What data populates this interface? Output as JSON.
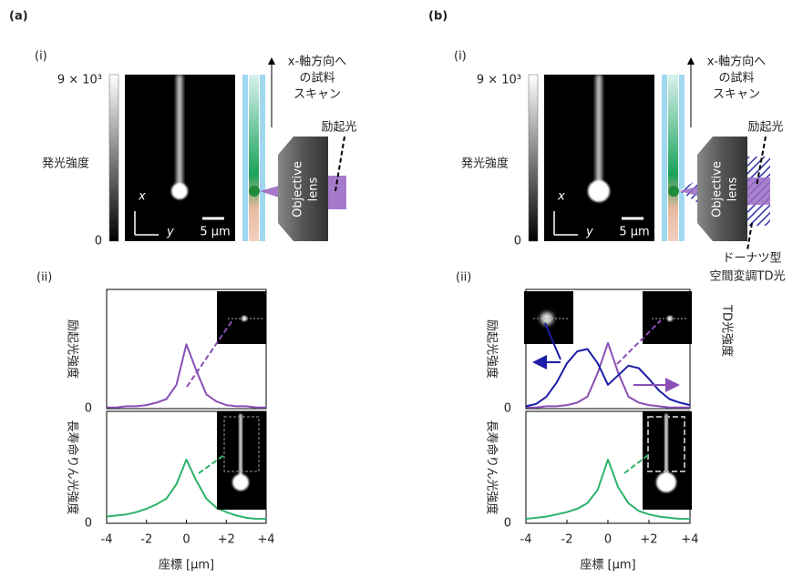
{
  "panels": [
    {
      "label": "(a)",
      "image_label": "(i)",
      "colorbar_ticks": [
        {
          "value": 9000,
          "label": "9 × 10³"
        },
        0
      ],
      "colorbar_title": "発光強度",
      "axis_x": "x",
      "axis_y": "y",
      "scale_bar": "5 μm",
      "scan_label": [
        "x-軸方向へ",
        "の試料",
        "スキャン"
      ],
      "excitation": "励起光",
      "lens": [
        "Objective",
        "lens"
      ],
      "plot_label": "(ii)"
    },
    {
      "label": "(b)",
      "image_label": "(i)",
      "colorbar_ticks": [
        {
          "value": 9000,
          "label": "9 × 10³"
        },
        0
      ],
      "colorbar_title": "発光強度",
      "axis_x": "x",
      "axis_y": "y",
      "scale_bar": "5 μm",
      "scan_label": [
        "x-軸方向へ",
        "の試料",
        "スキャン"
      ],
      "excitation": "励起光",
      "lens": [
        "Objective",
        "lens"
      ],
      "td_light": [
        "ドーナツ型",
        "空間変調TD光"
      ],
      "plot_label": "(ii)"
    }
  ],
  "chart_data": [
    {
      "type": "line",
      "ylabel": "励起光強度",
      "x": [
        -4,
        -3.5,
        -3,
        -2.5,
        -2,
        -1.5,
        -1,
        -0.5,
        0,
        0.5,
        1,
        1.5,
        2,
        2.5,
        3,
        3.5,
        4
      ],
      "xlim": [
        -4,
        4
      ],
      "ylim": [
        0,
        1
      ],
      "yticks": [
        0
      ],
      "series": [
        {
          "color": "#8a4fb5",
          "values": [
            0.01,
            0.01,
            0.02,
            0.02,
            0.03,
            0.05,
            0.08,
            0.2,
            0.54,
            0.32,
            0.12,
            0.06,
            0.03,
            0.02,
            0.02,
            0.01,
            0.01
          ]
        }
      ]
    },
    {
      "type": "line",
      "ylabel": "長寿命りん光強度",
      "xlabel": "座標 [μm]",
      "x": [
        -4,
        -3.5,
        -3,
        -2.5,
        -2,
        -1.5,
        -1,
        -0.5,
        0,
        0.5,
        1,
        1.5,
        2,
        2.5,
        3,
        3.5,
        4
      ],
      "xlim": [
        -4,
        4
      ],
      "xticks": [
        -4,
        -2,
        0,
        {
          "value": 2,
          "label": "+2"
        },
        {
          "value": 4,
          "label": "+4"
        }
      ],
      "ylim": [
        0,
        1
      ],
      "yticks": [
        0
      ],
      "series": [
        {
          "color": "#2db36a",
          "values": [
            0.06,
            0.07,
            0.08,
            0.1,
            0.13,
            0.17,
            0.22,
            0.35,
            0.57,
            0.38,
            0.22,
            0.14,
            0.1,
            0.07,
            0.05,
            0.04,
            0.04
          ]
        }
      ]
    },
    {
      "type": "line",
      "ylabel": "励起光強度",
      "y2label": "TD光強度",
      "x": [
        -4,
        -3.5,
        -3,
        -2.5,
        -2,
        -1.5,
        -1,
        -0.5,
        0,
        0.5,
        1,
        1.5,
        2,
        2.5,
        3,
        3.5,
        4
      ],
      "xlim": [
        -4,
        4
      ],
      "ylim": [
        0,
        1
      ],
      "yticks": [
        0
      ],
      "y2lim": [
        0,
        1
      ],
      "series": [
        {
          "color": "#8a4fb5",
          "values": [
            0.01,
            0.01,
            0.02,
            0.02,
            0.03,
            0.05,
            0.1,
            0.3,
            0.55,
            0.3,
            0.1,
            0.05,
            0.03,
            0.02,
            0.01,
            0.01,
            0.01
          ]
        },
        {
          "color": "#1c1ca8",
          "axis": "y2",
          "values": [
            0.02,
            0.04,
            0.1,
            0.22,
            0.38,
            0.48,
            0.5,
            0.38,
            0.2,
            0.28,
            0.36,
            0.34,
            0.25,
            0.15,
            0.08,
            0.05,
            0.03
          ]
        }
      ]
    },
    {
      "type": "line",
      "ylabel": "長寿命りん光強度",
      "xlabel": "座標 [μm]",
      "x": [
        -4,
        -3.5,
        -3,
        -2.5,
        -2,
        -1.5,
        -1,
        -0.5,
        0,
        0.5,
        1,
        1.5,
        2,
        2.5,
        3,
        3.5,
        4
      ],
      "xlim": [
        -4,
        4
      ],
      "xticks": [
        -4,
        -2,
        0,
        {
          "value": 2,
          "label": "+2"
        },
        {
          "value": 4,
          "label": "+4"
        }
      ],
      "ylim": [
        0,
        1
      ],
      "yticks": [
        0
      ],
      "series": [
        {
          "color": "#2db36a",
          "values": [
            0.04,
            0.05,
            0.06,
            0.08,
            0.1,
            0.13,
            0.18,
            0.3,
            0.57,
            0.32,
            0.18,
            0.11,
            0.08,
            0.06,
            0.05,
            0.04,
            0.04
          ]
        }
      ]
    }
  ]
}
